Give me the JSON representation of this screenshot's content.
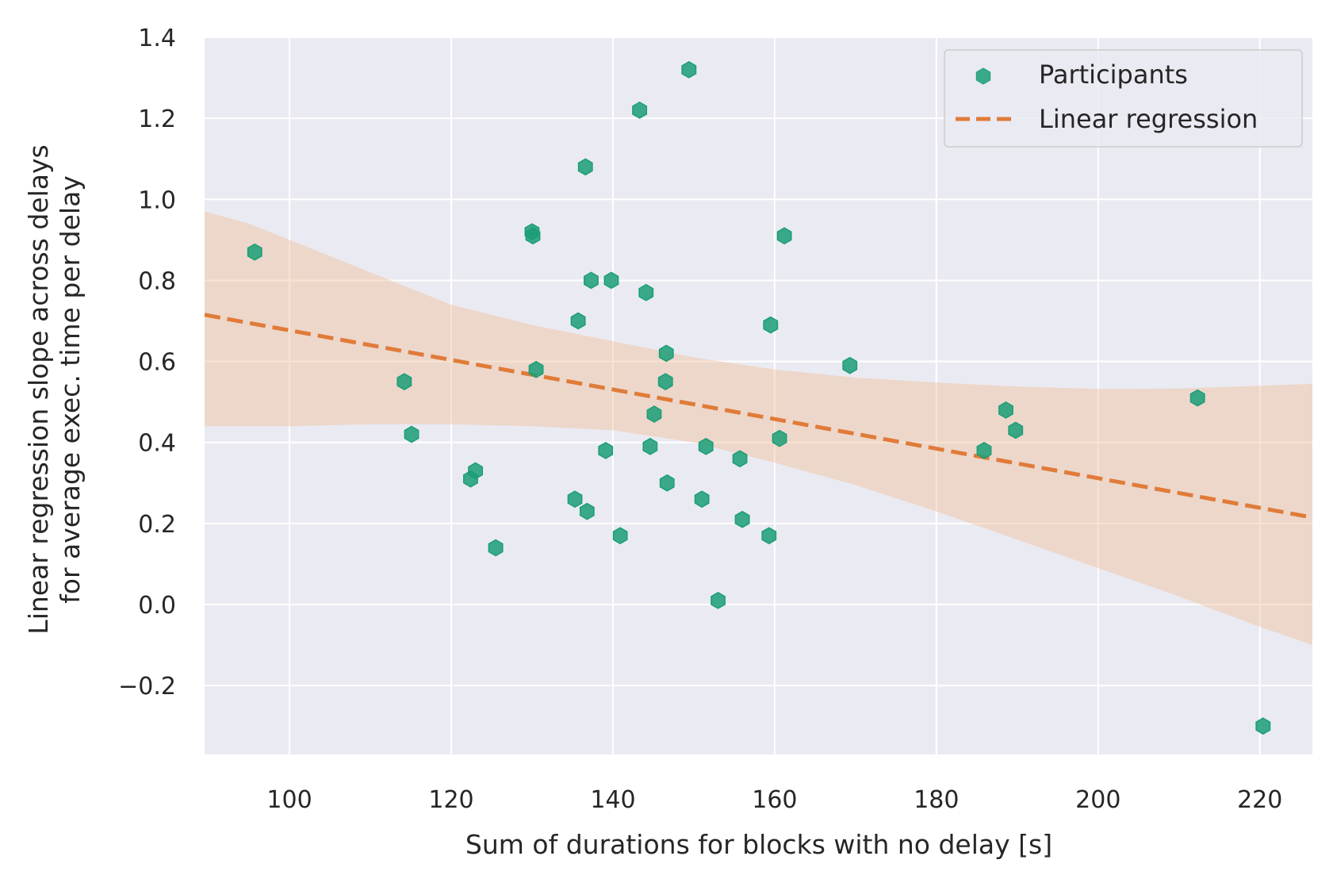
{
  "chart_data": {
    "type": "scatter",
    "xlabel": "Sum of durations for blocks with no delay [s]",
    "ylabel": [
      "Linear regression slope across delays",
      "for average exec. time per delay"
    ],
    "xlim": [
      89.5,
      226.5
    ],
    "ylim": [
      -0.37,
      1.4
    ],
    "xticks": [
      100,
      120,
      140,
      160,
      180,
      200,
      220
    ],
    "xtick_labels": [
      "100",
      "120",
      "140",
      "160",
      "180",
      "200",
      "220"
    ],
    "yticks": [
      -0.2,
      0.0,
      0.2,
      0.4,
      0.6,
      0.8,
      1.0,
      1.2,
      1.4
    ],
    "ytick_labels": [
      "−0.2",
      "0.0",
      "0.2",
      "0.4",
      "0.6",
      "0.8",
      "1.0",
      "1.2",
      "1.4"
    ],
    "grid": true,
    "legend_position": "top-right",
    "colors": {
      "background": "#eaeaf2",
      "grid": "#ffffff",
      "points": "#1b9e77",
      "line": "#e07b39",
      "band": "#f2c09a"
    },
    "series": [
      {
        "name": "Participants",
        "kind": "scatter",
        "marker": "hexagon",
        "points": [
          [
            95.7,
            0.87
          ],
          [
            114.2,
            0.55
          ],
          [
            115.1,
            0.42
          ],
          [
            122.4,
            0.31
          ],
          [
            123.0,
            0.33
          ],
          [
            125.5,
            0.14
          ],
          [
            130.0,
            0.92
          ],
          [
            130.1,
            0.91
          ],
          [
            130.5,
            0.58
          ],
          [
            135.3,
            0.26
          ],
          [
            135.7,
            0.7
          ],
          [
            136.6,
            1.08
          ],
          [
            136.8,
            0.23
          ],
          [
            137.3,
            0.8
          ],
          [
            139.1,
            0.38
          ],
          [
            139.8,
            0.8
          ],
          [
            140.9,
            0.17
          ],
          [
            143.3,
            1.22
          ],
          [
            144.1,
            0.77
          ],
          [
            144.6,
            0.39
          ],
          [
            145.1,
            0.47
          ],
          [
            146.5,
            0.55
          ],
          [
            146.6,
            0.62
          ],
          [
            146.7,
            0.3
          ],
          [
            149.4,
            1.32
          ],
          [
            151.0,
            0.26
          ],
          [
            151.5,
            0.39
          ],
          [
            153.0,
            0.01
          ],
          [
            155.7,
            0.36
          ],
          [
            156.0,
            0.21
          ],
          [
            159.3,
            0.17
          ],
          [
            159.5,
            0.69
          ],
          [
            160.6,
            0.41
          ],
          [
            161.2,
            0.91
          ],
          [
            169.3,
            0.59
          ],
          [
            185.9,
            0.38
          ],
          [
            188.6,
            0.48
          ],
          [
            189.8,
            0.43
          ],
          [
            212.3,
            0.51
          ],
          [
            220.4,
            -0.3
          ]
        ]
      },
      {
        "name": "Linear regression",
        "kind": "line",
        "style": "dashed",
        "points": [
          [
            89.5,
            0.715
          ],
          [
            226.5,
            0.215
          ]
        ]
      }
    ],
    "confidence_band": {
      "x": [
        89.5,
        95,
        100,
        110,
        120,
        130,
        140,
        150,
        160,
        170,
        180,
        190,
        200,
        210,
        220,
        226.5
      ],
      "upper": [
        0.97,
        0.94,
        0.9,
        0.82,
        0.74,
        0.69,
        0.65,
        0.61,
        0.58,
        0.56,
        0.548,
        0.538,
        0.532,
        0.533,
        0.54,
        0.545
      ],
      "lower": [
        0.44,
        0.44,
        0.44,
        0.445,
        0.445,
        0.44,
        0.43,
        0.4,
        0.35,
        0.295,
        0.23,
        0.16,
        0.09,
        0.02,
        -0.055,
        -0.1
      ]
    }
  }
}
